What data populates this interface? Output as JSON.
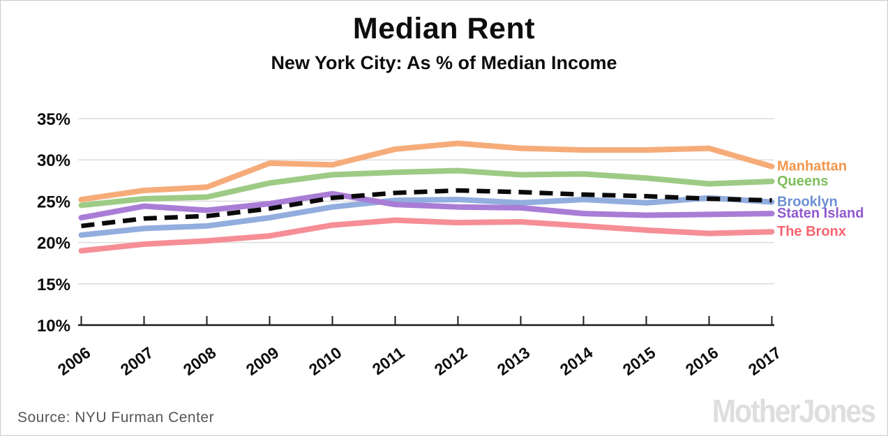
{
  "header": {
    "title": "Median Rent",
    "subtitle": "New York City: As % of Median Income"
  },
  "footer": {
    "source": "Source: NYU Furman Center",
    "brand": "MotherJones"
  },
  "chart_data": {
    "type": "line",
    "title": "Median Rent",
    "subtitle": "New York City: As % of Median Income",
    "x": [
      2006,
      2007,
      2008,
      2009,
      2010,
      2011,
      2012,
      2013,
      2014,
      2015,
      2016,
      2017
    ],
    "series": [
      {
        "name": "Manhattan",
        "color": "#F5964B",
        "line_color": "#F6AC79",
        "dash": false,
        "values": [
          25.2,
          26.3,
          26.7,
          29.6,
          29.4,
          31.3,
          32.0,
          31.4,
          31.2,
          31.2,
          31.4,
          29.2
        ]
      },
      {
        "name": "Queens",
        "color": "#7CBE59",
        "line_color": "#9DCB85",
        "dash": false,
        "values": [
          24.5,
          25.3,
          25.5,
          27.2,
          28.2,
          28.5,
          28.7,
          28.2,
          28.3,
          27.8,
          27.1,
          27.4
        ]
      },
      {
        "name": "Brooklyn",
        "color": "#6D8FD4",
        "line_color": "#92AEDE",
        "dash": false,
        "values": [
          20.9,
          21.7,
          22.0,
          23.0,
          24.3,
          25.1,
          25.2,
          24.8,
          25.2,
          24.8,
          25.4,
          24.9
        ]
      },
      {
        "name": "Staten Island",
        "color": "#9059CB",
        "line_color": "#A97DD6",
        "dash": false,
        "values": [
          23.0,
          24.4,
          23.9,
          24.7,
          25.9,
          24.6,
          24.3,
          24.2,
          23.5,
          23.3,
          23.4,
          23.5
        ]
      },
      {
        "name": "The Bronx",
        "color": "#F4646E",
        "line_color": "#F68E96",
        "dash": false,
        "values": [
          19.0,
          19.8,
          20.2,
          20.8,
          22.1,
          22.7,
          22.4,
          22.5,
          22.0,
          21.5,
          21.1,
          21.3
        ]
      },
      {
        "name": "",
        "color": "#000000",
        "line_color": "#0a0a0a",
        "dash": true,
        "values": [
          22.0,
          22.9,
          23.2,
          24.1,
          25.4,
          26.0,
          26.3,
          26.1,
          25.8,
          25.6,
          25.3,
          25.1
        ]
      }
    ],
    "y_ticks": [
      35,
      30,
      25,
      20,
      15,
      10
    ],
    "y_tick_suffix": "%",
    "ylim": [
      10,
      35
    ],
    "grid": true,
    "legend_position": "right"
  }
}
